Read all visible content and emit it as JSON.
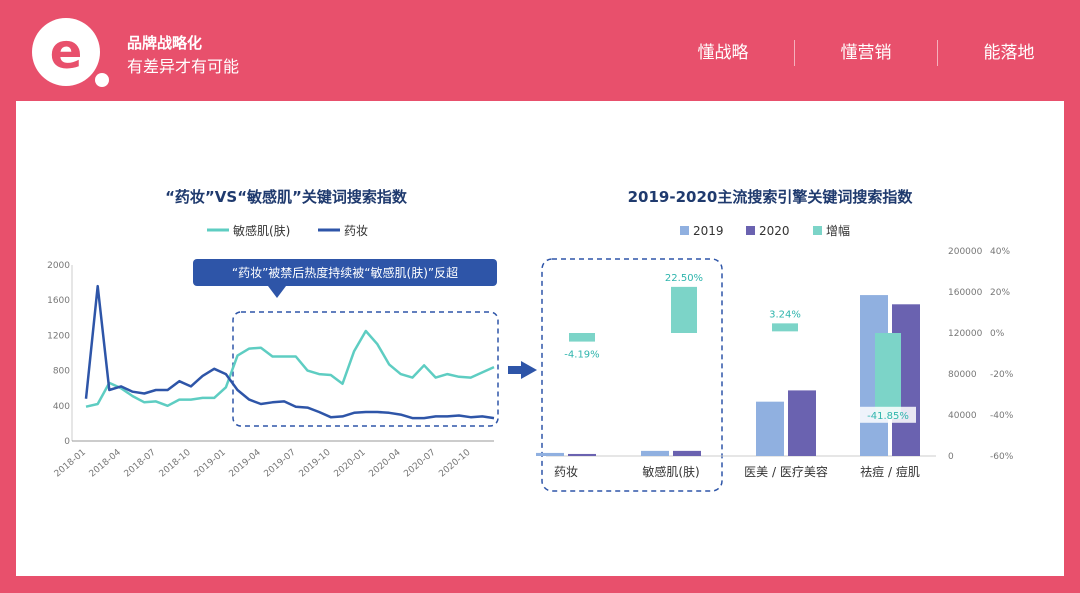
{
  "brand": {
    "title": "品牌战略化",
    "subtitle": "有差异才有可能",
    "logo_letter": "e"
  },
  "nav": [
    {
      "label": "懂战略"
    },
    {
      "label": "懂营销"
    },
    {
      "label": "能落地"
    }
  ],
  "colors": {
    "background": "#E8506C",
    "panel": "#FFFFFF",
    "teal": "#5ECDC2",
    "navy": "#2E55A8",
    "bar2019": "#90B0E0",
    "bar2020": "#6A62B0",
    "growth": "#7CD4C8",
    "dash": "#2E55A8"
  },
  "chart_data": [
    {
      "type": "line",
      "title": "“药妆”VS“敏感肌”关键词搜索指数",
      "callout": "“药妆”被禁后热度持续被“敏感肌(肤)”反超",
      "x_ticks": [
        "2018-01",
        "2018-04",
        "2018-07",
        "2018-10",
        "2019-01",
        "2019-04",
        "2019-07",
        "2019-10",
        "2020-01",
        "2020-04",
        "2020-07",
        "2020-10"
      ],
      "y_ticks": [
        "0",
        "400",
        "800",
        "1200",
        "1600",
        "2000"
      ],
      "ylim": [
        0,
        2000
      ],
      "series": [
        {
          "name": "敏感肌(肤)",
          "x": [
            "2018-01",
            "2018-02",
            "2018-03",
            "2018-04",
            "2018-05",
            "2018-06",
            "2018-07",
            "2018-08",
            "2018-09",
            "2018-10",
            "2018-11",
            "2018-12",
            "2019-01",
            "2019-02",
            "2019-03",
            "2019-04",
            "2019-05",
            "2019-06",
            "2019-07",
            "2019-08",
            "2019-09",
            "2019-10",
            "2019-11",
            "2019-12",
            "2020-01",
            "2020-02",
            "2020-03",
            "2020-04",
            "2020-05",
            "2020-06",
            "2020-07",
            "2020-08",
            "2020-09",
            "2020-10",
            "2020-11",
            "2020-12"
          ],
          "values": [
            390,
            420,
            660,
            600,
            510,
            440,
            450,
            400,
            470,
            470,
            490,
            490,
            610,
            970,
            1050,
            1060,
            960,
            960,
            960,
            800,
            760,
            750,
            650,
            1020,
            1250,
            1100,
            870,
            760,
            720,
            860,
            720,
            760,
            730,
            720,
            780,
            840
          ]
        },
        {
          "name": "药妆",
          "x": [
            "2018-01",
            "2018-02",
            "2018-03",
            "2018-04",
            "2018-05",
            "2018-06",
            "2018-07",
            "2018-08",
            "2018-09",
            "2018-10",
            "2018-11",
            "2018-12",
            "2019-01",
            "2019-02",
            "2019-03",
            "2019-04",
            "2019-05",
            "2019-06",
            "2019-07",
            "2019-08",
            "2019-09",
            "2019-10",
            "2019-11",
            "2019-12",
            "2020-01",
            "2020-02",
            "2020-03",
            "2020-04",
            "2020-05",
            "2020-06",
            "2020-07",
            "2020-08",
            "2020-09",
            "2020-10",
            "2020-11",
            "2020-12"
          ],
          "values": [
            480,
            1760,
            580,
            620,
            560,
            540,
            580,
            580,
            680,
            620,
            740,
            820,
            760,
            580,
            470,
            420,
            440,
            450,
            390,
            380,
            330,
            270,
            280,
            320,
            330,
            330,
            320,
            300,
            260,
            260,
            280,
            280,
            290,
            270,
            280,
            260
          ]
        }
      ]
    },
    {
      "type": "bar",
      "title": "2019-2020主流搜索引擎关键词搜索指数",
      "categories": [
        "药妆",
        "敏感肌(肤)",
        "医美 / 医疗美容",
        "祛痘 / 痘肌"
      ],
      "series": [
        {
          "name": "2019",
          "values": [
            3000,
            5000,
            53000,
            157000
          ]
        },
        {
          "name": "2020",
          "values": [
            2000,
            5000,
            64000,
            148000
          ]
        },
        {
          "name": "增幅",
          "values": [
            -4.19,
            22.5,
            3.24,
            -41.85
          ],
          "unit": "%",
          "labels": [
            "-4.19%",
            "22.50%",
            "3.24%",
            "-41.85%"
          ]
        }
      ],
      "left_axis": {
        "ticks": [
          "0",
          "40000",
          "80000",
          "120000",
          "160000",
          "200000"
        ],
        "ylim": [
          0,
          200000
        ]
      },
      "right_axis": {
        "ticks": [
          "-60%",
          "-40%",
          "-20%",
          "0%",
          "20%",
          "40%"
        ],
        "ylim": [
          -60,
          40
        ]
      }
    }
  ]
}
